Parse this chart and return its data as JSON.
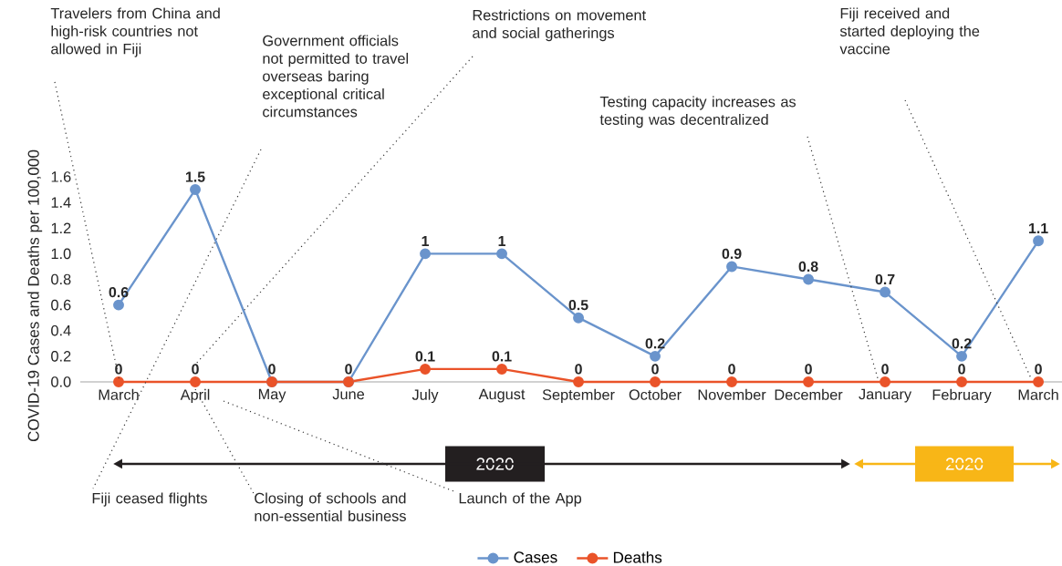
{
  "chart_data": {
    "type": "line",
    "ylabel": "COVID-19 Cases and Deaths per 100,000",
    "categories": [
      "March",
      "April",
      "May",
      "June",
      "July",
      "August",
      "September",
      "October",
      "November",
      "December",
      "January",
      "February",
      "March"
    ],
    "series": [
      {
        "name": "Cases",
        "color": "#6a94cc",
        "values": [
          0.6,
          1.5,
          0,
          0,
          1,
          1,
          0.5,
          0.2,
          0.9,
          0.8,
          0.7,
          0.2,
          1.1
        ],
        "value_labels": [
          "0.6",
          "1.5",
          "0",
          "0",
          "1",
          "1",
          "0.5",
          "0.2",
          "0.9",
          "0.8",
          "0.7",
          "0.2",
          "1.1"
        ]
      },
      {
        "name": "Deaths",
        "color": "#ea5329",
        "values": [
          0,
          0,
          0,
          0,
          0.1,
          0.1,
          0,
          0,
          0,
          0,
          0,
          0,
          0
        ],
        "value_labels": [
          "0",
          "0",
          null,
          null,
          "0.1",
          "0.1",
          "0",
          "0",
          "0",
          "0",
          "0",
          "0",
          "0"
        ]
      }
    ],
    "ylim": [
      0,
      1.6
    ],
    "yticks": [
      {
        "value": 0,
        "label": "0.0"
      },
      {
        "value": 0.2,
        "label": "0.2"
      },
      {
        "value": 0.4,
        "label": "0.4"
      },
      {
        "value": 0.6,
        "label": "0.6"
      },
      {
        "value": 0.8,
        "label": "0.8"
      },
      {
        "value": 1.0,
        "label": "1.0"
      },
      {
        "value": 1.2,
        "label": "1.2"
      },
      {
        "value": 1.4,
        "label": "1.4"
      },
      {
        "value": 1.6,
        "label": "1.6"
      }
    ],
    "marker": "circle",
    "line_style": "solid",
    "legend": "bottom",
    "annotations": [
      "Travelers from China and high-risk countries not allowed in Fiji",
      "Government officials not permitted to travel overseas baring exceptional critical circumstances",
      "Restrictions on movement and social gatherings",
      "Testing capacity increases as testing was decentralized",
      "Fiji received and started deploying the vaccine",
      "Fiji ceased flights",
      {
        "text": "Closing of schools and non-essential business",
        "x": "April",
        "y": 0
      },
      "Launch of the App",
      "2020",
      "2020"
    ]
  }
}
